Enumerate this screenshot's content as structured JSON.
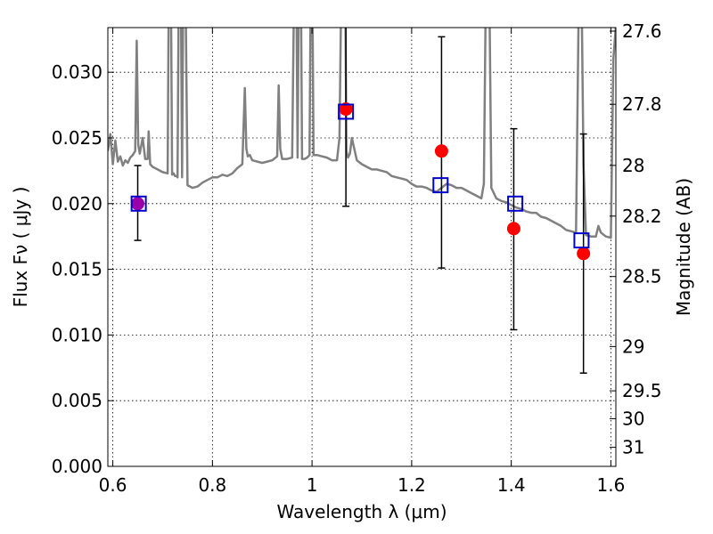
{
  "chart_data": {
    "type": "scatter",
    "xlabel": "Wavelength  λ (μm)",
    "ylabel": "Flux  Fν  ( μJy )",
    "ylabel_right": "Magnitude (AB)",
    "xlim": [
      0.59,
      1.61
    ],
    "ylim": [
      0.0,
      0.0334
    ],
    "grid": true,
    "x_ticks": [
      0.6,
      0.8,
      1.0,
      1.2,
      1.4,
      1.6
    ],
    "x_tick_labels": [
      "0.6",
      "0.8",
      "1",
      "1.2",
      "1.4",
      "1.6"
    ],
    "y_ticks": [
      0.0,
      0.005,
      0.01,
      0.015,
      0.02,
      0.025,
      0.03
    ],
    "y_tick_labels": [
      "0.000",
      "0.005",
      "0.010",
      "0.015",
      "0.020",
      "0.025",
      "0.030"
    ],
    "right_ticks": [
      {
        "label": "27.6",
        "flux": 0.03313
      },
      {
        "label": "27.8",
        "flux": 0.02756
      },
      {
        "label": "28",
        "flux": 0.02291
      },
      {
        "label": "28.2",
        "flux": 0.01905
      },
      {
        "label": "28.5",
        "flux": 0.01445
      },
      {
        "label": "29",
        "flux": 0.00912
      },
      {
        "label": "29.5",
        "flux": 0.00575
      },
      {
        "label": "30",
        "flux": 0.00363
      },
      {
        "label": "31",
        "flux": 0.00145
      }
    ],
    "series": [
      {
        "role": "spectrum",
        "color": "#808080",
        "x": [
          0.59,
          0.595,
          0.6,
          0.605,
          0.61,
          0.615,
          0.62,
          0.625,
          0.63,
          0.635,
          0.64,
          0.645,
          0.648,
          0.651,
          0.654,
          0.66,
          0.665,
          0.67,
          0.672,
          0.675,
          0.68,
          0.69,
          0.7,
          0.71,
          0.713,
          0.716,
          0.719,
          0.722,
          0.725,
          0.728,
          0.73,
          0.733,
          0.736,
          0.739,
          0.742,
          0.745,
          0.75,
          0.76,
          0.77,
          0.78,
          0.79,
          0.8,
          0.81,
          0.82,
          0.83,
          0.84,
          0.85,
          0.86,
          0.865,
          0.868,
          0.871,
          0.875,
          0.88,
          0.89,
          0.9,
          0.91,
          0.92,
          0.93,
          0.933,
          0.936,
          0.94,
          0.95,
          0.96,
          0.965,
          0.968,
          0.971,
          0.974,
          0.977,
          0.98,
          0.985,
          0.99,
          0.995,
          0.998,
          1.0,
          1.003,
          1.01,
          1.02,
          1.03,
          1.04,
          1.05,
          1.055,
          1.06,
          1.063,
          1.066,
          1.069,
          1.072,
          1.076,
          1.08,
          1.09,
          1.1,
          1.11,
          1.12,
          1.13,
          1.14,
          1.15,
          1.16,
          1.17,
          1.18,
          1.19,
          1.2,
          1.21,
          1.22,
          1.23,
          1.24,
          1.25,
          1.26,
          1.27,
          1.28,
          1.29,
          1.3,
          1.31,
          1.32,
          1.33,
          1.34,
          1.345,
          1.35,
          1.355,
          1.36,
          1.37,
          1.38,
          1.39,
          1.4,
          1.41,
          1.42,
          1.43,
          1.44,
          1.45,
          1.46,
          1.47,
          1.48,
          1.49,
          1.5,
          1.51,
          1.52,
          1.53,
          1.537,
          1.54,
          1.545,
          1.55,
          1.56,
          1.57,
          1.575,
          1.58,
          1.59,
          1.6,
          1.605,
          1.61
        ],
        "y": [
          0.024,
          0.0253,
          0.023,
          0.0248,
          0.0232,
          0.0236,
          0.0229,
          0.0233,
          0.0231,
          0.0235,
          0.0237,
          0.024,
          0.0324,
          0.0245,
          0.0238,
          0.025,
          0.0234,
          0.0234,
          0.0255,
          0.023,
          0.0228,
          0.0226,
          0.0224,
          0.0223,
          0.04,
          0.04,
          0.0222,
          0.0223,
          0.0221,
          0.0221,
          0.022,
          0.04,
          0.04,
          0.022,
          0.04,
          0.04,
          0.0214,
          0.0212,
          0.0213,
          0.0216,
          0.0218,
          0.022,
          0.022,
          0.0222,
          0.0221,
          0.0223,
          0.0227,
          0.023,
          0.0288,
          0.0242,
          0.0236,
          0.0237,
          0.0233,
          0.0232,
          0.0231,
          0.0232,
          0.0233,
          0.0236,
          0.029,
          0.0242,
          0.0234,
          0.0234,
          0.0235,
          0.04,
          0.04,
          0.0235,
          0.04,
          0.04,
          0.0234,
          0.0234,
          0.0235,
          0.0237,
          0.04,
          0.04,
          0.0237,
          0.0237,
          0.0236,
          0.0235,
          0.0233,
          0.0233,
          0.025,
          0.04,
          0.04,
          0.04,
          0.024,
          0.0235,
          0.0238,
          0.025,
          0.0233,
          0.023,
          0.0228,
          0.0226,
          0.0226,
          0.0225,
          0.0224,
          0.0221,
          0.022,
          0.0219,
          0.0218,
          0.0215,
          0.0213,
          0.0213,
          0.0212,
          0.021,
          0.0209,
          0.0212,
          0.0215,
          0.0214,
          0.0212,
          0.0212,
          0.021,
          0.0208,
          0.0206,
          0.0204,
          0.0215,
          0.04,
          0.04,
          0.0212,
          0.0204,
          0.0202,
          0.0201,
          0.0199,
          0.0197,
          0.0196,
          0.0194,
          0.0193,
          0.0193,
          0.019,
          0.0189,
          0.0187,
          0.0185,
          0.0183,
          0.018,
          0.0179,
          0.0178,
          0.04,
          0.04,
          0.023,
          0.0176,
          0.0175,
          0.0175,
          0.0183,
          0.0178,
          0.0175,
          0.0174,
          0.031,
          0.0335
        ]
      },
      {
        "role": "observed",
        "color": "#ff0000",
        "x": [
          0.65,
          1.068,
          1.26,
          1.405,
          1.545
        ],
        "y": [
          0.02,
          0.0272,
          0.024,
          0.0181,
          0.0162
        ],
        "yerr_low": [
          0.0172,
          0.0198,
          0.0151,
          0.0104,
          0.0071
        ],
        "yerr_high": [
          0.0229,
          0.034,
          0.0327,
          0.0257,
          0.0253
        ]
      },
      {
        "role": "model",
        "color": "#0000cc",
        "x": [
          0.652,
          1.068,
          1.258,
          1.408,
          1.541
        ],
        "y": [
          0.02,
          0.027,
          0.0214,
          0.02,
          0.0172
        ]
      }
    ],
    "overlap_color": "#9900aa"
  }
}
